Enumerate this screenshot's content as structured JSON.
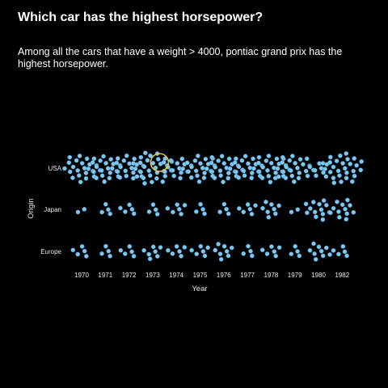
{
  "title": "Which car has the highest horsepower?",
  "subtitle": "Among all the cars that have a weight > 4000, pontiac grand prix has the highest horsepower.",
  "colors": {
    "background": "#000000",
    "dot_fill": "#7ec8f0",
    "dot_stroke": "#4a8fbf",
    "highlight_ring": "#e6c24a",
    "text": "#e6e6e6"
  },
  "chart_data": {
    "type": "scatter",
    "subtype": "beeswarm",
    "title": "Which car has the highest horsepower?",
    "xlabel": "Year",
    "ylabel": "Origin",
    "x_categories": [
      "1970",
      "1971",
      "1972",
      "1973",
      "1974",
      "1975",
      "1976",
      "1977",
      "1978",
      "1979",
      "1980",
      "1982"
    ],
    "y_categories": [
      "USA",
      "Japan",
      "Europe"
    ],
    "counts": {
      "USA": [
        22,
        20,
        18,
        29,
        14,
        20,
        22,
        18,
        22,
        23,
        7,
        28
      ],
      "Japan": [
        2,
        4,
        5,
        4,
        6,
        4,
        4,
        6,
        8,
        2,
        13,
        12
      ],
      "Europe": [
        5,
        4,
        5,
        7,
        6,
        6,
        8,
        4,
        6,
        4,
        9,
        5
      ]
    },
    "highlight": {
      "origin": "USA",
      "year": "1973",
      "label": "pontiac grand prix"
    },
    "grid": false,
    "legend": "none"
  }
}
